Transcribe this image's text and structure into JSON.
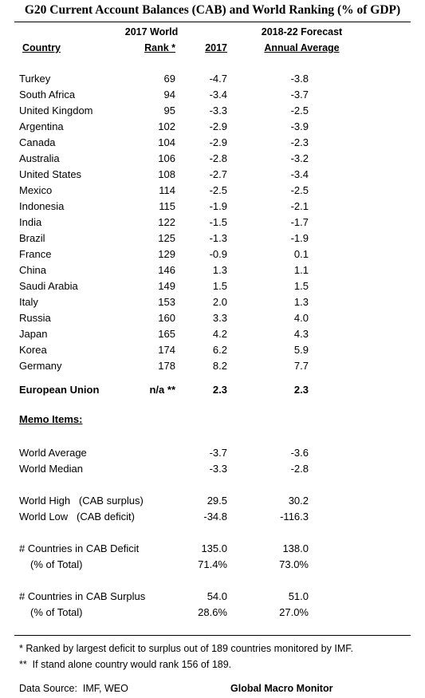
{
  "title": "G20 Current Account Balances (CAB) and World Ranking (% of GDP)",
  "headers": {
    "country": "Country",
    "rank_line1": "2017 World",
    "rank_line2": "Rank *",
    "year": "2017",
    "forecast_line1": "2018-22 Forecast",
    "forecast_line2": "Annual Average"
  },
  "rows": [
    {
      "country": "Turkey",
      "rank": "69",
      "cab2017": "-4.7",
      "forecast": "-3.8"
    },
    {
      "country": "South Africa",
      "rank": "94",
      "cab2017": "-3.4",
      "forecast": "-3.7"
    },
    {
      "country": "United Kingdom",
      "rank": "95",
      "cab2017": "-3.3",
      "forecast": "-2.5"
    },
    {
      "country": "Argentina",
      "rank": "102",
      "cab2017": "-2.9",
      "forecast": "-3.9"
    },
    {
      "country": "Canada",
      "rank": "104",
      "cab2017": "-2.9",
      "forecast": "-2.3"
    },
    {
      "country": "Australia",
      "rank": "106",
      "cab2017": "-2.8",
      "forecast": "-3.2"
    },
    {
      "country": "United States",
      "rank": "108",
      "cab2017": "-2.7",
      "forecast": "-3.4"
    },
    {
      "country": "Mexico",
      "rank": "114",
      "cab2017": "-2.5",
      "forecast": "-2.5"
    },
    {
      "country": "Indonesia",
      "rank": "115",
      "cab2017": "-1.9",
      "forecast": "-2.1"
    },
    {
      "country": "India",
      "rank": "122",
      "cab2017": "-1.5",
      "forecast": "-1.7"
    },
    {
      "country": "Brazil",
      "rank": "125",
      "cab2017": "-1.3",
      "forecast": "-1.9"
    },
    {
      "country": "France",
      "rank": "129",
      "cab2017": "-0.9",
      "forecast": "0.1"
    },
    {
      "country": "China",
      "rank": "146",
      "cab2017": "1.3",
      "forecast": "1.1"
    },
    {
      "country": "Saudi Arabia",
      "rank": "149",
      "cab2017": "1.5",
      "forecast": "1.5"
    },
    {
      "country": "Italy",
      "rank": "153",
      "cab2017": "2.0",
      "forecast": "1.3"
    },
    {
      "country": "Russia",
      "rank": "160",
      "cab2017": "3.3",
      "forecast": "4.0"
    },
    {
      "country": "Japan",
      "rank": "165",
      "cab2017": "4.2",
      "forecast": "4.3"
    },
    {
      "country": "Korea",
      "rank": "174",
      "cab2017": "6.2",
      "forecast": "5.9"
    },
    {
      "country": "Germany",
      "rank": "178",
      "cab2017": "8.2",
      "forecast": "7.7"
    }
  ],
  "eu": {
    "country": "European Union",
    "rank": "n/a **",
    "cab2017": "2.3",
    "forecast": "2.3"
  },
  "memo": {
    "title": "Memo Items:",
    "world_average": {
      "label": "World Average",
      "cab2017": "-3.7",
      "forecast": "-3.6"
    },
    "world_median": {
      "label": "World Median",
      "cab2017": "-3.3",
      "forecast": "-2.8"
    },
    "world_high": {
      "label": "World High   (CAB surplus)",
      "cab2017": "29.5",
      "forecast": "30.2"
    },
    "world_low": {
      "label": "World Low   (CAB deficit)",
      "cab2017": "-34.8",
      "forecast": "-116.3"
    },
    "deficit_count": {
      "label": "# Countries in CAB Deficit",
      "cab2017": "135.0",
      "forecast": "138.0"
    },
    "deficit_pct": {
      "label": "(% of Total)",
      "cab2017": "71.4%",
      "forecast": "73.0%"
    },
    "surplus_count": {
      "label": "# Countries in CAB Surplus",
      "cab2017": "54.0",
      "forecast": "51.0"
    },
    "surplus_pct": {
      "label": "(% of Total)",
      "cab2017": "28.6%",
      "forecast": "27.0%"
    }
  },
  "footnotes": {
    "note1": "* Ranked by largest deficit to surplus out of 189 countries monitored by IMF.",
    "note2": "**  If stand alone country would rank 156 of 189."
  },
  "source": {
    "data_source": "Data Source:  IMF, WEO",
    "credit": "Global Macro Monitor"
  }
}
